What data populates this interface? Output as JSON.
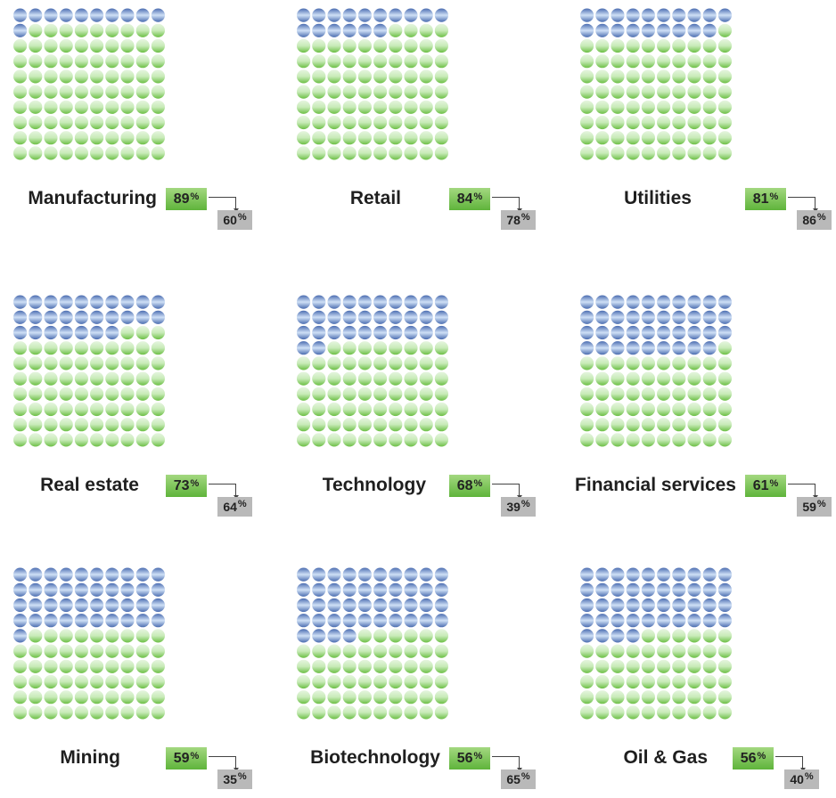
{
  "chart_data": {
    "type": "waffle",
    "grid": {
      "rows": 10,
      "cols": 10
    },
    "colors": {
      "highlight": "#5b7fbe",
      "base": "#8fd06a",
      "primary_box": "#6cbb45",
      "secondary_box": "#b9b9b9"
    },
    "series": [
      {
        "name": "primary",
        "color": "#6cbb45"
      },
      {
        "name": "secondary",
        "color": "#b9b9b9"
      }
    ],
    "percent_symbol": "%",
    "panels": [
      {
        "label": "Manufacturing",
        "primary": 89,
        "primary_text": "89",
        "secondary": 60,
        "secondary_text": "60",
        "highlighted_dots": 11
      },
      {
        "label": "Retail",
        "primary": 84,
        "primary_text": "84",
        "secondary": 78,
        "secondary_text": "78",
        "highlighted_dots": 16
      },
      {
        "label": "Utilities",
        "primary": 81,
        "primary_text": "81",
        "secondary": 86,
        "secondary_text": "86",
        "highlighted_dots": 19
      },
      {
        "label": "Real estate",
        "primary": 73,
        "primary_text": "73",
        "secondary": 64,
        "secondary_text": "64",
        "highlighted_dots": 27
      },
      {
        "label": "Technology",
        "primary": 68,
        "primary_text": "68",
        "secondary": 39,
        "secondary_text": "39",
        "highlighted_dots": 32
      },
      {
        "label": "Financial services",
        "primary": 61,
        "primary_text": "61",
        "secondary": 59,
        "secondary_text": "59",
        "highlighted_dots": 39
      },
      {
        "label": "Mining",
        "primary": 59,
        "primary_text": "59",
        "secondary": 35,
        "secondary_text": "35",
        "highlighted_dots": 41
      },
      {
        "label": "Biotechnology",
        "primary": 56,
        "primary_text": "56",
        "secondary": 65,
        "secondary_text": "65",
        "highlighted_dots": 44
      },
      {
        "label": "Oil & Gas",
        "primary": 56,
        "primary_text": "56",
        "secondary": 40,
        "secondary_text": "40",
        "highlighted_dots": 44
      }
    ]
  }
}
